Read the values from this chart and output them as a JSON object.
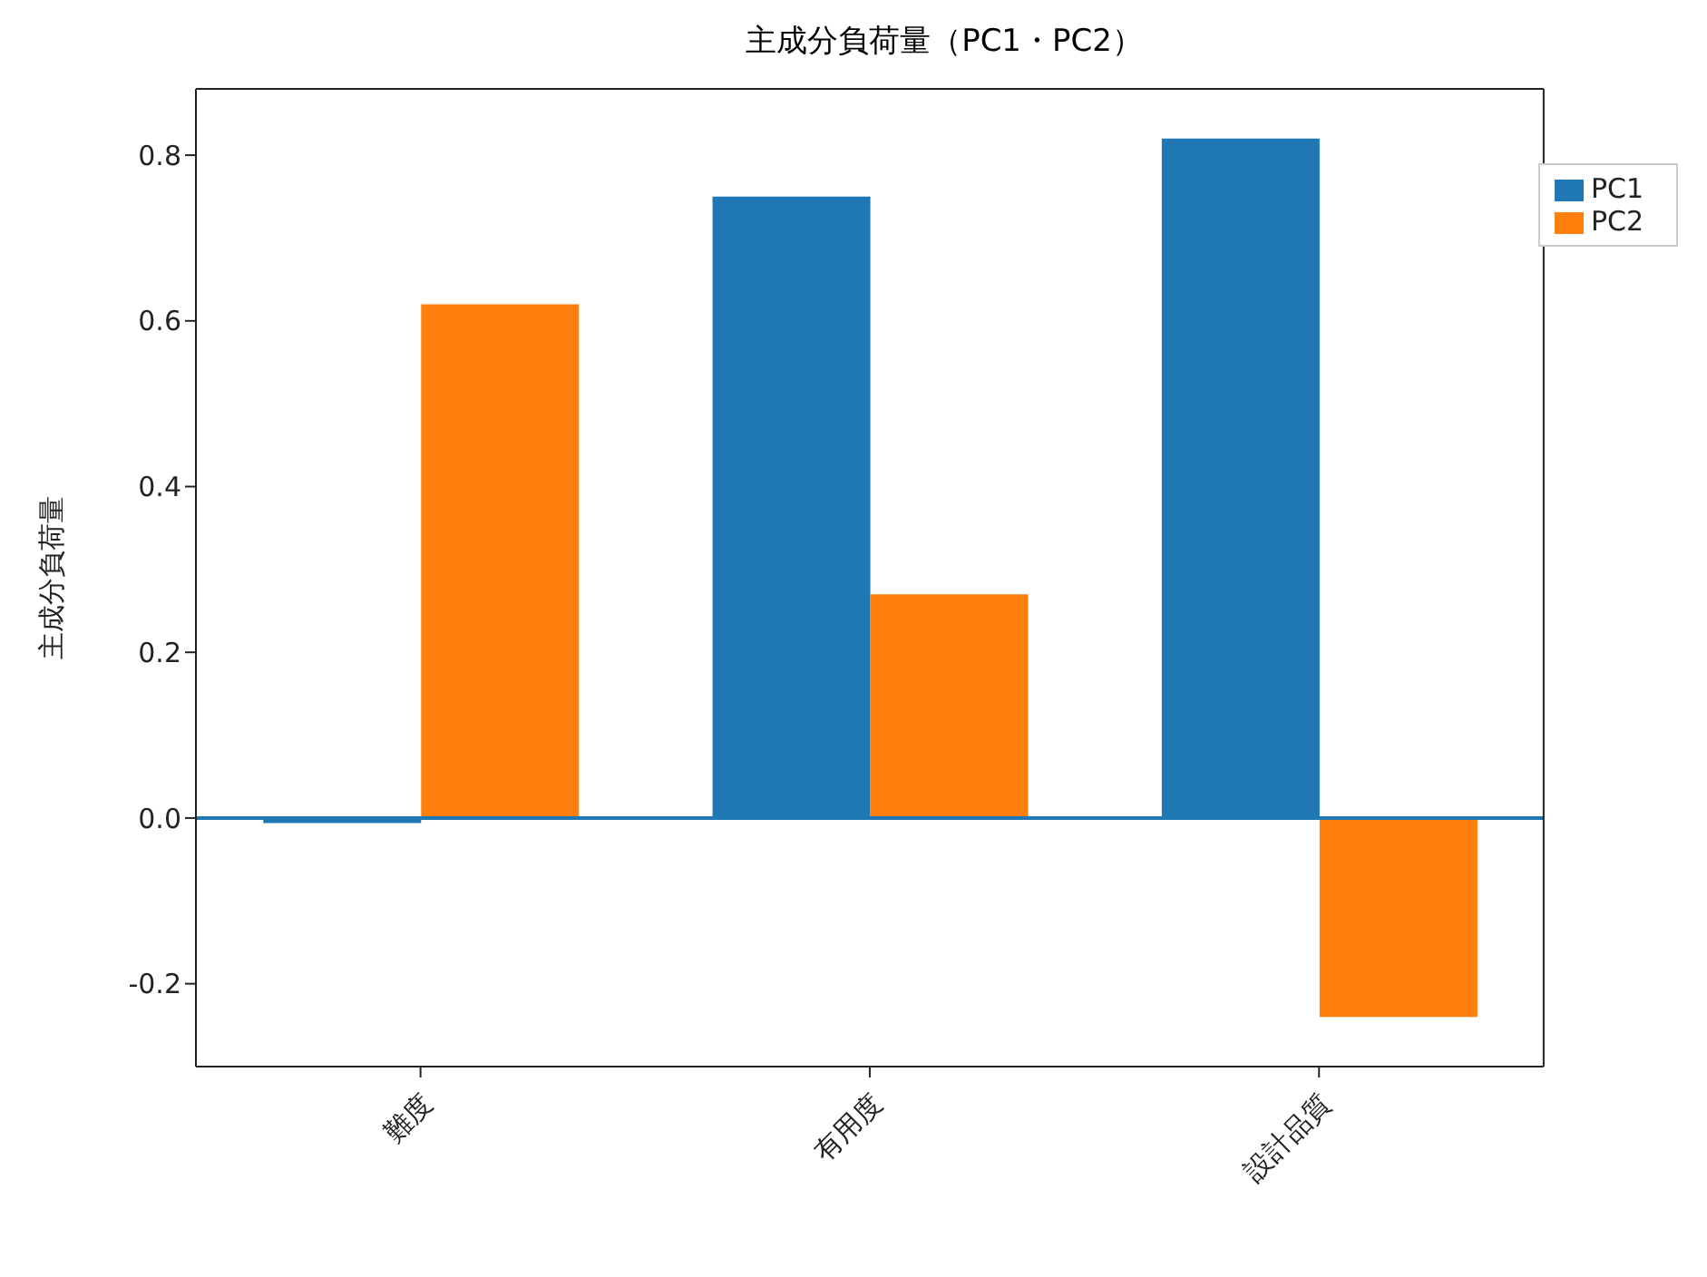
{
  "chart_data": {
    "type": "bar",
    "title": "主成分負荷量（PC1・PC2）",
    "ylabel": "主成分負荷量",
    "categories": [
      "難度",
      "有用度",
      "設計品質"
    ],
    "series": [
      {
        "name": "PC1",
        "color": "#1f77b4",
        "values": [
          -0.006,
          0.75,
          0.82
        ]
      },
      {
        "name": "PC2",
        "color": "#ff7f0e",
        "values": [
          0.62,
          0.27,
          -0.24
        ]
      }
    ],
    "ylim": [
      -0.3,
      0.88
    ],
    "yticks": [
      -0.2,
      {
        "value": 0,
        "label": "0.0"
      },
      0.2,
      0.4,
      0.6,
      0.8
    ],
    "ref_lines": [
      {
        "axis": "y",
        "value": 0,
        "color": "#1f77b4"
      }
    ],
    "grid": false,
    "legend": "top right"
  }
}
